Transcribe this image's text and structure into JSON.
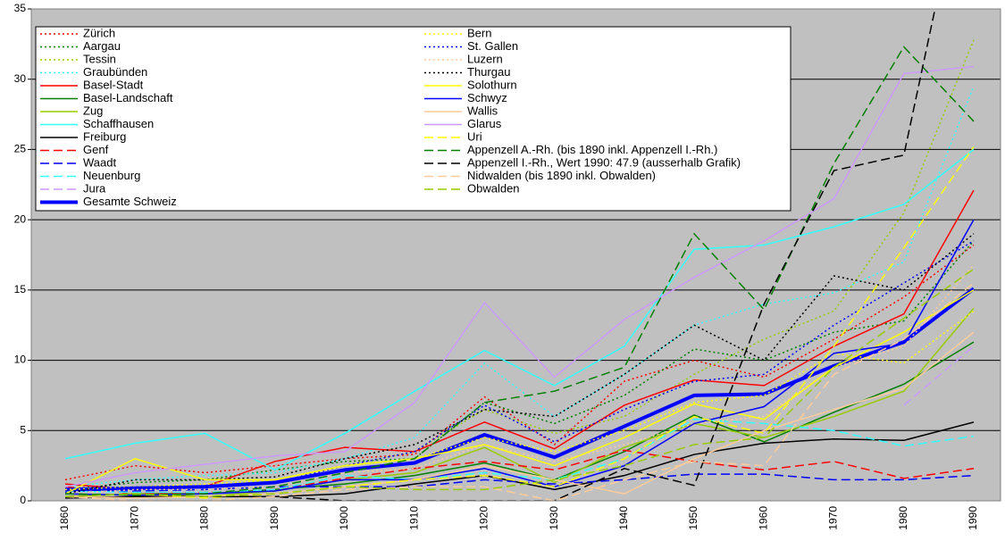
{
  "chart_data": {
    "type": "line",
    "categories": [
      "1860",
      "1870",
      "1880",
      "1890",
      "1900",
      "1910",
      "1920",
      "1930",
      "1940",
      "1950",
      "1960",
      "1970",
      "1980",
      "1990"
    ],
    "ylim": [
      0,
      35
    ],
    "yticks": [
      0,
      5,
      10,
      15,
      20,
      25,
      30,
      35
    ],
    "grid": true,
    "legend": "upper-left",
    "series": [
      {
        "name": "Zürich",
        "color": "#ff0000",
        "dash": "dot",
        "values": [
          1.5,
          2.5,
          2.0,
          2.5,
          3.0,
          3.3,
          7.4,
          4.0,
          8.5,
          10.0,
          8.8,
          11.5,
          14.5,
          18.2
        ]
      },
      {
        "name": "Aargau",
        "color": "#008000",
        "dash": "dot",
        "values": [
          0.8,
          1.3,
          1.5,
          2.2,
          2.8,
          3.0,
          7.0,
          5.5,
          7.5,
          10.8,
          10.0,
          12.0,
          12.8,
          18.5
        ]
      },
      {
        "name": "Tessin",
        "color": "#99cc00",
        "dash": "dot",
        "values": [
          0.7,
          1.0,
          1.0,
          1.5,
          2.5,
          3.5,
          6.5,
          4.8,
          6.0,
          9.0,
          11.5,
          13.5,
          20.5,
          32.8
        ]
      },
      {
        "name": "Graubünden",
        "color": "#33ffff",
        "dash": "dot",
        "values": [
          1.0,
          1.5,
          1.8,
          2.0,
          3.0,
          4.5,
          9.8,
          6.0,
          9.0,
          12.5,
          14.0,
          14.8,
          17.0,
          29.5
        ]
      },
      {
        "name": "Basel-Stadt",
        "color": "#ff0000",
        "dash": "solid",
        "values": [
          1.2,
          0.8,
          1.0,
          2.8,
          3.8,
          3.5,
          5.6,
          3.7,
          6.8,
          8.6,
          8.2,
          11.0,
          13.3,
          22.1
        ]
      },
      {
        "name": "Basel-Landschaft",
        "color": "#008000",
        "dash": "solid",
        "values": [
          0.3,
          0.5,
          0.5,
          0.8,
          1.2,
          1.8,
          2.7,
          1.5,
          3.5,
          6.1,
          4.2,
          6.3,
          8.3,
          11.3
        ]
      },
      {
        "name": "Zug",
        "color": "#99cc00",
        "dash": "solid",
        "values": [
          0.3,
          0.5,
          0.3,
          0.7,
          1.5,
          2.0,
          3.8,
          1.3,
          3.8,
          5.5,
          4.5,
          6.0,
          7.8,
          13.7
        ]
      },
      {
        "name": "Schaffhausen",
        "color": "#33ffff",
        "dash": "solid",
        "values": [
          3.0,
          4.1,
          4.8,
          2.2,
          4.8,
          7.8,
          10.7,
          8.2,
          11.0,
          17.9,
          18.2,
          19.5,
          21.1,
          25.0
        ]
      },
      {
        "name": "Freiburg",
        "color": "#000000",
        "dash": "solid",
        "values": [
          0.2,
          0.3,
          0.3,
          0.3,
          0.5,
          1.2,
          1.8,
          0.8,
          1.8,
          3.3,
          4.1,
          4.4,
          4.3,
          5.6
        ]
      },
      {
        "name": "Genf",
        "color": "#ff0000",
        "dash": "dash",
        "values": [
          1.0,
          0.5,
          0.6,
          0.8,
          1.6,
          2.3,
          2.8,
          2.2,
          3.6,
          2.8,
          2.2,
          2.8,
          1.6,
          2.3
        ]
      },
      {
        "name": "Waadt",
        "color": "#0000ff",
        "dash": "dash",
        "values": [
          0.7,
          0.7,
          0.8,
          1.0,
          1.0,
          1.0,
          1.5,
          1.2,
          1.5,
          1.9,
          1.9,
          1.5,
          1.5,
          1.8
        ]
      },
      {
        "name": "Neuenburg",
        "color": "#33ffff",
        "dash": "dash",
        "values": [
          0.7,
          0.6,
          0.6,
          0.8,
          1.8,
          1.5,
          2.0,
          1.5,
          3.0,
          5.8,
          5.5,
          5.0,
          3.9,
          4.6
        ]
      },
      {
        "name": "Jura",
        "color": "#cc99ff",
        "dash": "dash",
        "values": [
          null,
          null,
          null,
          null,
          null,
          null,
          null,
          null,
          null,
          null,
          null,
          null,
          6.8,
          11.0
        ]
      },
      {
        "name": "Gesamte Schweiz",
        "color": "#0000ff",
        "dash": "solid",
        "width": 4,
        "values": [
          0.8,
          0.9,
          1.0,
          1.3,
          2.2,
          2.7,
          4.7,
          3.1,
          5.3,
          7.5,
          7.6,
          9.6,
          11.3,
          15.1
        ]
      },
      {
        "name": "Bern",
        "color": "#ffff00",
        "dash": "dot",
        "values": [
          0.8,
          1.0,
          1.2,
          1.5,
          2.5,
          3.0,
          4.5,
          3.5,
          5.0,
          7.0,
          7.5,
          10.5,
          9.8,
          13.5
        ]
      },
      {
        "name": "St. Gallen",
        "color": "#0000ff",
        "dash": "dot",
        "values": [
          0.6,
          1.0,
          1.0,
          1.3,
          2.5,
          3.5,
          6.8,
          4.2,
          6.5,
          8.5,
          9.0,
          12.5,
          15.5,
          18.5
        ]
      },
      {
        "name": "Luzern",
        "color": "#ffcc99",
        "dash": "dot",
        "values": [
          0.5,
          0.8,
          0.8,
          1.0,
          2.0,
          2.3,
          4.0,
          2.8,
          4.0,
          5.5,
          6.0,
          9.5,
          11.0,
          16.8
        ]
      },
      {
        "name": "Thurgau",
        "color": "#000000",
        "dash": "dot",
        "values": [
          0.5,
          1.5,
          1.5,
          1.7,
          3.0,
          4.0,
          6.5,
          6.0,
          9.0,
          12.5,
          10.0,
          16.0,
          15.0,
          19.0
        ]
      },
      {
        "name": "Solothurn",
        "color": "#ffff00",
        "dash": "solid",
        "values": [
          0.5,
          3.0,
          1.5,
          1.5,
          2.5,
          3.0,
          4.0,
          2.5,
          4.5,
          6.9,
          5.8,
          9.5,
          12.0,
          15.0
        ]
      },
      {
        "name": "Schwyz",
        "color": "#0000ff",
        "dash": "solid",
        "values": [
          0.5,
          0.4,
          0.5,
          0.7,
          1.5,
          1.5,
          2.3,
          1.0,
          2.5,
          5.5,
          6.7,
          10.5,
          11.2,
          20.0
        ]
      },
      {
        "name": "Wallis",
        "color": "#ffcc99",
        "dash": "solid",
        "values": [
          0.3,
          0.2,
          0.3,
          0.5,
          1.0,
          1.5,
          2.5,
          1.5,
          0.5,
          3.0,
          5.0,
          6.5,
          8.0,
          12.0
        ]
      },
      {
        "name": "Glarus",
        "color": "#cc99ff",
        "dash": "solid",
        "values": [
          1.0,
          2.0,
          2.6,
          3.2,
          3.5,
          7.0,
          14.1,
          8.8,
          12.9,
          15.9,
          18.5,
          21.5,
          30.4,
          30.9
        ]
      },
      {
        "name": "Uri",
        "color": "#ffff00",
        "dash": "dash",
        "values": [
          0.3,
          0.5,
          0.2,
          0.5,
          1.0,
          1.5,
          1.8,
          1.0,
          3.0,
          6.0,
          4.8,
          11.0,
          18.0,
          25.2
        ]
      },
      {
        "name": "Appenzell A.-Rh. (bis 1890 inkl. Appenzell I.-Rh.)",
        "color": "#008000",
        "dash": "dash",
        "values": [
          0.5,
          0.4,
          0.5,
          1.0,
          2.0,
          3.0,
          7.0,
          7.8,
          9.5,
          19.0,
          13.6,
          24.0,
          32.3,
          27.0
        ]
      },
      {
        "name": "Appenzell I.-Rh., Wert 1990: 47.9 (ausserhalb Grafik)",
        "color": "#000000",
        "dash": "dash",
        "values": [
          0.3,
          0.5,
          0.3,
          0.3,
          0,
          0,
          0,
          0,
          2.3,
          1.1,
          14.0,
          23.5,
          24.6,
          47.9
        ]
      },
      {
        "name": "Nidwalden (bis 1890 inkl. Obwalden)",
        "color": "#ffcc99",
        "dash": "dash",
        "values": [
          0.3,
          0,
          0,
          0.3,
          0.8,
          1.0,
          1.0,
          0,
          1.5,
          2.8,
          2.5,
          9.0,
          11.5,
          15.5
        ]
      },
      {
        "name": "Obwalden",
        "color": "#99cc00",
        "dash": "dash",
        "values": [
          0.3,
          0.5,
          0.3,
          0.5,
          1.0,
          0.8,
          0.8,
          1.5,
          2.5,
          4.0,
          4.5,
          9.5,
          13.0,
          16.5
        ]
      }
    ]
  }
}
